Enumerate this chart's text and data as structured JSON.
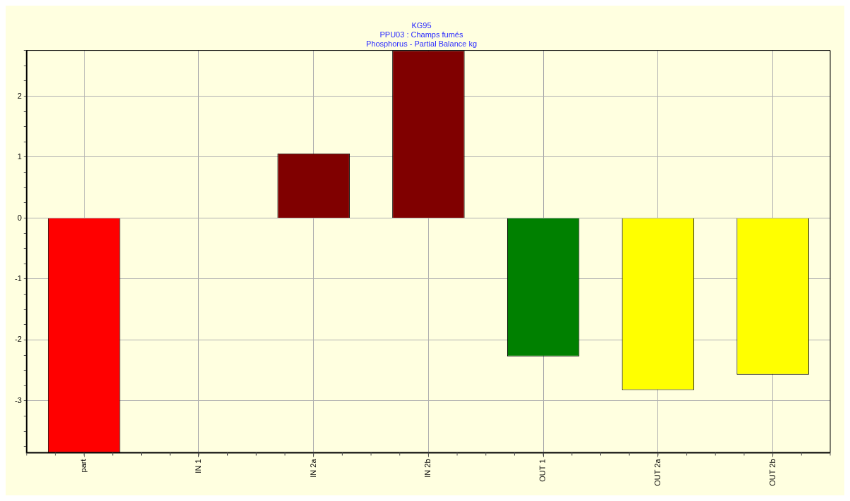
{
  "chart_data": {
    "type": "bar",
    "title": "KG95",
    "subtitle": "PPU03 : Champs fumés\nPhosphorus - Partial Balance kg",
    "categories": [
      "part",
      "IN 1",
      "IN 2a",
      "IN 2b",
      "OUT 1",
      "OUT 2a",
      "OUT 2b"
    ],
    "values": [
      -3.85,
      0,
      1.06,
      2.75,
      -2.27,
      -2.82,
      -2.57
    ],
    "colors": [
      "#ff0000",
      "#ffffff",
      "#800000",
      "#800000",
      "#008000",
      "#ffff00",
      "#ffff00"
    ],
    "ylim": [
      -3.85,
      2.75
    ],
    "yticks": [
      {
        "value": -3.75,
        "label": null
      },
      {
        "value": -3.5,
        "label": null
      },
      {
        "value": -3.25,
        "label": null
      },
      -3,
      {
        "value": -2.75,
        "label": null
      },
      {
        "value": -2.5,
        "label": null
      },
      {
        "value": -2.25,
        "label": null
      },
      -2,
      {
        "value": -1.75,
        "label": null
      },
      {
        "value": -1.5,
        "label": null
      },
      {
        "value": -1.25,
        "label": null
      },
      -1,
      {
        "value": -0.75,
        "label": null
      },
      {
        "value": -0.5,
        "label": null
      },
      {
        "value": -0.25,
        "label": null
      },
      0,
      {
        "value": 0.25,
        "label": null
      },
      {
        "value": 0.5,
        "label": null
      },
      {
        "value": 0.75,
        "label": null
      },
      1,
      {
        "value": 1.25,
        "label": null
      },
      {
        "value": 1.5,
        "label": null
      },
      {
        "value": 1.75,
        "label": null
      },
      2,
      {
        "value": 2.25,
        "label": null
      },
      {
        "value": 2.5,
        "label": null
      },
      {
        "value": 2.75,
        "label": null
      }
    ],
    "grid": true,
    "legend": false
  }
}
